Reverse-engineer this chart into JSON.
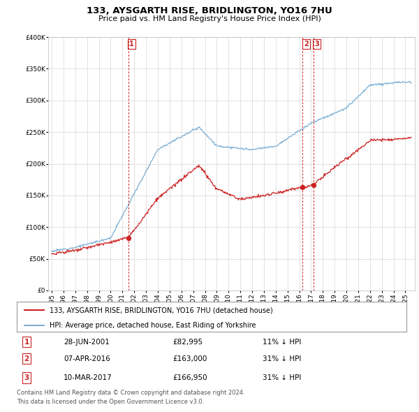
{
  "title": "133, AYSGARTH RISE, BRIDLINGTON, YO16 7HU",
  "subtitle": "Price paid vs. HM Land Registry's House Price Index (HPI)",
  "legend_label_red": "133, AYSGARTH RISE, BRIDLINGTON, YO16 7HU (detached house)",
  "legend_label_blue": "HPI: Average price, detached house, East Riding of Yorkshire",
  "footer_line1": "Contains HM Land Registry data © Crown copyright and database right 2024.",
  "footer_line2": "This data is licensed under the Open Government Licence v3.0.",
  "transactions": [
    {
      "num": 1,
      "date": "28-JUN-2001",
      "price": "£82,995",
      "change": "11% ↓ HPI",
      "year": 2001.49,
      "price_val": 82995
    },
    {
      "num": 2,
      "date": "07-APR-2016",
      "price": "£163,000",
      "change": "31% ↓ HPI",
      "year": 2016.27,
      "price_val": 163000
    },
    {
      "num": 3,
      "date": "10-MAR-2017",
      "price": "£166,950",
      "change": "31% ↓ HPI",
      "year": 2017.19,
      "price_val": 166950
    }
  ],
  "hpi_color": "#7bafd4",
  "price_color": "#cc2222",
  "vline_color": "#cc2222",
  "ylim": [
    0,
    400000
  ],
  "xlim_start": 1994.7,
  "xlim_end": 2025.8,
  "background_color": "#ffffff",
  "grid_color": "#cccccc"
}
